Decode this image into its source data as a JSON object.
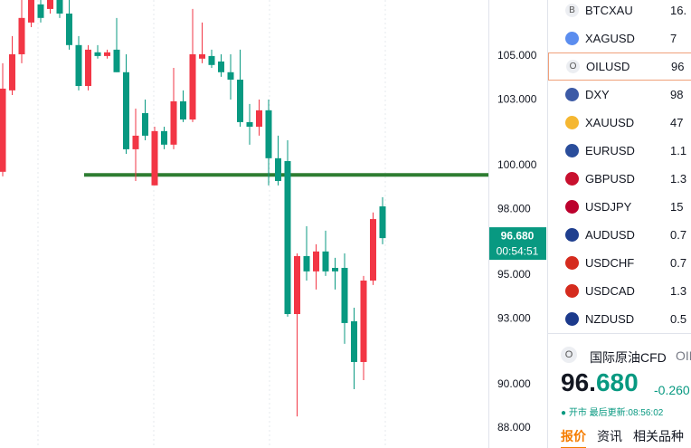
{
  "chart_data": {
    "type": "candlestick",
    "open": [
      99.71,
      103.43,
      105.08,
      106.53,
      107.36,
      107.15,
      107.56,
      106.94,
      105.5,
      103.63,
      105.17,
      105.0,
      105.29,
      104.26,
      100.74,
      102.39,
      99.09,
      101.57,
      100.95,
      102.93,
      102.1,
      104.88,
      105.0,
      104.75,
      104.26,
      103.92,
      101.98,
      101.77,
      102.52,
      100.33,
      100.2,
      93.21,
      95.86,
      95.16,
      96.07,
      95.32,
      95.32,
      92.88,
      91.02,
      94.74,
      98.13
    ],
    "high": [
      104.67,
      105.91,
      107.56,
      107.56,
      107.56,
      107.56,
      107.56,
      107.56,
      105.91,
      105.5,
      105.5,
      105.29,
      106.74,
      105.08,
      102.6,
      103.01,
      101.77,
      101.77,
      104.46,
      103.43,
      107.15,
      106.53,
      105.29,
      105.08,
      105.08,
      105.29,
      102.81,
      103.01,
      103.01,
      101.36,
      101.15,
      95.98,
      97.22,
      96.4,
      97.02,
      95.78,
      95.98,
      93.5,
      94.95,
      97.85,
      98.55
    ],
    "low": [
      99.5,
      103.22,
      104.67,
      106.32,
      106.53,
      106.94,
      106.74,
      105.29,
      103.43,
      103.43,
      104.88,
      104.88,
      104.26,
      100.53,
      99.29,
      101.15,
      99.09,
      100.74,
      100.74,
      101.98,
      101.98,
      104.67,
      104.46,
      104.05,
      103.01,
      101.77,
      100.95,
      101.36,
      99.09,
      99.09,
      93.09,
      88.53,
      94.74,
      94.33,
      94.95,
      94.33,
      91.85,
      89.78,
      90.19,
      94.54,
      96.4
    ],
    "close": [
      103.51,
      105.08,
      106.74,
      107.56,
      106.74,
      107.56,
      106.94,
      105.5,
      103.63,
      105.29,
      105.0,
      105.17,
      104.26,
      100.74,
      101.36,
      101.36,
      101.57,
      100.95,
      102.93,
      102.1,
      105.08,
      105.08,
      104.59,
      104.26,
      103.92,
      101.98,
      101.77,
      102.52,
      100.33,
      99.29,
      93.21,
      95.86,
      95.16,
      96.07,
      95.16,
      95.16,
      92.8,
      91.02,
      94.74,
      97.55,
      96.68
    ],
    "up_color": "#f23645",
    "down_color": "#089981",
    "ylim": [
      87.09,
      107.56
    ],
    "yticks": [
      {
        "value": 105,
        "label": "105.000"
      },
      {
        "value": 103,
        "label": "103.000"
      },
      {
        "value": 100,
        "label": "100.000"
      },
      {
        "value": 98,
        "label": "98.000"
      },
      {
        "value": 95,
        "label": "95.000"
      },
      {
        "value": 93,
        "label": "93.000"
      },
      {
        "value": 90,
        "label": "90.000"
      },
      {
        "value": 88,
        "label": "88.000"
      }
    ],
    "hline": {
      "value": 99.57,
      "color": "#2e7d32"
    },
    "price_label": "96.680",
    "countdown": "00:54:51"
  },
  "watchlist": [
    {
      "icon": "B",
      "symbol": "BTCXAU",
      "value": "16."
    },
    {
      "symbol": "XAGUSD",
      "value": "7"
    },
    {
      "icon": "O",
      "symbol": "OILUSD",
      "value": "96"
    },
    {
      "symbol": "DXY",
      "value": "98"
    },
    {
      "symbol": "XAUUSD",
      "value": "47"
    },
    {
      "symbol": "EURUSD",
      "value": "1.1"
    },
    {
      "symbol": "GBPUSD",
      "value": "1.3"
    },
    {
      "symbol": "USDJPY",
      "value": "15"
    },
    {
      "symbol": "AUDUSD",
      "value": "0.7"
    },
    {
      "symbol": "USDCHF",
      "value": "0.7"
    },
    {
      "symbol": "USDCAD",
      "value": "1.3"
    },
    {
      "symbol": "NZDUSD",
      "value": "0.5"
    }
  ],
  "detail": {
    "icon": "O",
    "name": "国际原油CFD",
    "code": "OIL",
    "price_int": "96.",
    "price_dec": "680",
    "change": "-0.260",
    "status": "开市",
    "updated": "最后更新:08:56:02",
    "tabs": [
      "报价",
      "资讯",
      "相关品种"
    ]
  }
}
